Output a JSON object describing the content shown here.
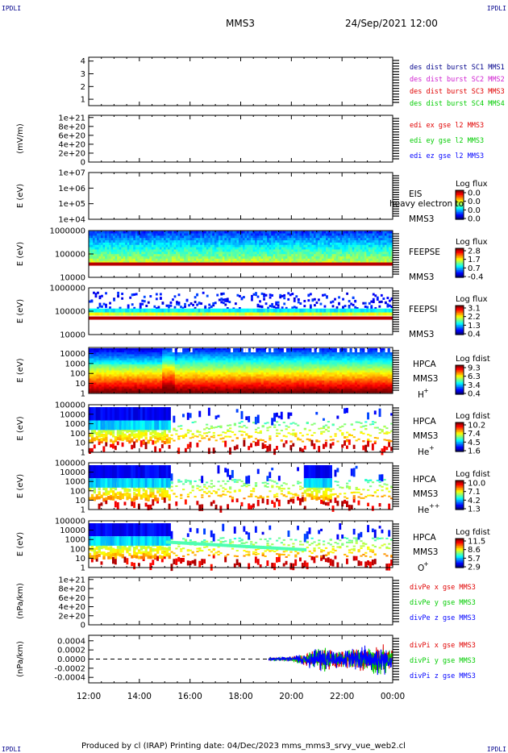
{
  "header": {
    "corner_left": "IPDLI",
    "corner_right": "IPDLI",
    "spacecraft": "MMS3",
    "datetime": "24/Sep/2021 12:00"
  },
  "footer": {
    "text": "Produced by cl (IRAP)    Printing date: 04/Dec/2023    mms_mms3_srvy_vue_web2.cl",
    "corner_left": "IPDLI",
    "corner_right": "IPDLI"
  },
  "colors": {
    "dark_blue": "#00008b",
    "magenta": "#d020d0",
    "red": "#e00000",
    "green": "#00cc00",
    "blue": "#0000ff"
  },
  "chart_data": [
    {
      "type": "line",
      "panel": "burst",
      "yticks": [
        "1",
        "2",
        "3",
        "4"
      ],
      "ylim": [
        0.5,
        4.3
      ],
      "legend": [
        {
          "label": "des dist burst SC1 MMS1",
          "color": "#00008b"
        },
        {
          "label": "des dist burst SC2 MMS2",
          "color": "#d020d0"
        },
        {
          "label": "des dist burst SC3 MMS3",
          "color": "#e00000"
        },
        {
          "label": "des dist burst SC4 MMS4",
          "color": "#00cc00"
        }
      ],
      "series": []
    },
    {
      "type": "line",
      "panel": "edi",
      "ylabel": "(mV/m)",
      "yticks": [
        "0",
        "2e+20",
        "4e+20",
        "6e+20",
        "8e+20",
        "1e+21"
      ],
      "ylim": [
        0,
        1.05e+21
      ],
      "zero_line": true,
      "legend": [
        {
          "label": "edi ex gse l2 MMS3",
          "color": "#e00000"
        },
        {
          "label": "edi ey gse l2 MMS3",
          "color": "#00cc00"
        },
        {
          "label": "edi ez gse l2 MMS3",
          "color": "#0000ff"
        }
      ],
      "series": []
    },
    {
      "type": "heatmap",
      "panel": "eis",
      "ylabel": "E (eV)",
      "yticks": [
        "1e+04",
        "1e+05",
        "1e+06",
        "1e+07"
      ],
      "ylim": [
        10000,
        10000000
      ],
      "scale": "log",
      "instrument": [
        "EIS",
        "MMS3"
      ],
      "overlay_text": "heavy electron to",
      "colorbar": {
        "title": "Log flux",
        "ticks": [
          "0.0",
          "0.0",
          "0.0",
          "0.0"
        ]
      }
    },
    {
      "type": "heatmap",
      "panel": "feepse",
      "ylabel": "E (eV)",
      "yticks": [
        "10000",
        "100000",
        "1000000"
      ],
      "ylim": [
        10000,
        1000000
      ],
      "scale": "log",
      "instrument": [
        "FEEPSE",
        "MMS3"
      ],
      "colorbar": {
        "title": "Log flux",
        "ticks": [
          "2.8",
          "1.7",
          "0.7",
          "-0.4"
        ]
      }
    },
    {
      "type": "heatmap",
      "panel": "feepsi",
      "ylabel": "E (eV)",
      "yticks": [
        "10000",
        "100000",
        "1000000"
      ],
      "ylim": [
        10000,
        1000000
      ],
      "scale": "log",
      "instrument": [
        "FEEPSI",
        "MMS3"
      ],
      "colorbar": {
        "title": "Log flux",
        "ticks": [
          "3.1",
          "2.2",
          "1.3",
          "0.4"
        ]
      }
    },
    {
      "type": "heatmap",
      "panel": "hpca_h",
      "ylabel": "E (eV)",
      "yticks": [
        "1",
        "10",
        "100",
        "1000",
        "10000"
      ],
      "ylim": [
        1,
        40000
      ],
      "scale": "log",
      "instrument": [
        "HPCA",
        "MMS3"
      ],
      "species": "H",
      "charge": "+",
      "colorbar": {
        "title": "Log fdist",
        "ticks": [
          "9.3",
          "6.3",
          "3.4",
          "0.4"
        ]
      }
    },
    {
      "type": "heatmap",
      "panel": "hpca_he1",
      "ylabel": "E (eV)",
      "yticks": [
        "1",
        "10",
        "100",
        "1000",
        "10000",
        "100000"
      ],
      "ylim": [
        1,
        100000
      ],
      "scale": "log",
      "instrument": [
        "HPCA",
        "MMS3"
      ],
      "species": "He",
      "charge": "+",
      "colorbar": {
        "title": "Log fdist",
        "ticks": [
          "10.2",
          "7.4",
          "4.5",
          "1.6"
        ]
      }
    },
    {
      "type": "heatmap",
      "panel": "hpca_he2",
      "ylabel": "E (eV)",
      "yticks": [
        "1",
        "10",
        "100",
        "1000",
        "10000",
        "100000"
      ],
      "ylim": [
        1,
        100000
      ],
      "scale": "log",
      "instrument": [
        "HPCA",
        "MMS3"
      ],
      "species": "He",
      "charge": "++",
      "colorbar": {
        "title": "Log fdist",
        "ticks": [
          "10.0",
          "7.1",
          "4.2",
          "1.3"
        ]
      }
    },
    {
      "type": "heatmap",
      "panel": "hpca_o",
      "ylabel": "E (eV)",
      "yticks": [
        "1",
        "10",
        "100",
        "1000",
        "10000",
        "100000"
      ],
      "ylim": [
        1,
        100000
      ],
      "scale": "log",
      "instrument": [
        "HPCA",
        "MMS3"
      ],
      "species": "O",
      "charge": "+",
      "colorbar": {
        "title": "Log fdist",
        "ticks": [
          "11.5",
          "8.6",
          "5.7",
          "2.9"
        ]
      }
    },
    {
      "type": "line",
      "panel": "divpe",
      "ylabel": "(nPa/km)",
      "yticks": [
        "0",
        "2e+20",
        "4e+20",
        "6e+20",
        "8e+20",
        "1e+21"
      ],
      "ylim": [
        0,
        1.05e+21
      ],
      "zero_line": true,
      "legend": [
        {
          "label": "divPe x gse MMS3",
          "color": "#e00000"
        },
        {
          "label": "divPe y gse MMS3",
          "color": "#00cc00"
        },
        {
          "label": "divPe z gse MMS3",
          "color": "#0000ff"
        }
      ],
      "series": []
    },
    {
      "type": "line",
      "panel": "divpi",
      "ylabel": "(nPa/km)",
      "yticks": [
        "-0.0004",
        "-0.0002",
        "0.0000",
        "0.0002",
        "0.0004"
      ],
      "ylim": [
        -0.00052,
        0.00052
      ],
      "zero_line": true,
      "legend": [
        {
          "label": "divPi x gse MMS3",
          "color": "#e00000"
        },
        {
          "label": "divPi y gse MMS3",
          "color": "#00cc00"
        },
        {
          "label": "divPi z gse MMS3",
          "color": "#0000ff"
        }
      ],
      "series": [
        {
          "name": "divPi x gse MMS3",
          "color": "#e00000",
          "x_start_hours": 19.1,
          "x_end_hours": 24.0,
          "envelope": [
            [
              19.1,
              3e-05
            ],
            [
              20.0,
              5e-05
            ],
            [
              21.2,
              0.0003
            ],
            [
              22.0,
              0.0002
            ],
            [
              22.8,
              0.0003
            ],
            [
              23.6,
              0.00035
            ],
            [
              24.0,
              0.0002
            ]
          ]
        },
        {
          "name": "divPi y gse MMS3",
          "color": "#00cc00",
          "x_start_hours": 19.1,
          "x_end_hours": 24.0,
          "envelope": [
            [
              19.1,
              3e-05
            ],
            [
              20.0,
              5e-05
            ],
            [
              21.2,
              0.0003
            ],
            [
              22.0,
              0.0002
            ],
            [
              22.8,
              0.0003
            ],
            [
              23.6,
              0.0004
            ],
            [
              24.0,
              0.0002
            ]
          ]
        },
        {
          "name": "divPi z gse MMS3",
          "color": "#0000ff",
          "x_start_hours": 19.1,
          "x_end_hours": 24.0,
          "envelope": [
            [
              19.1,
              4e-05
            ],
            [
              20.0,
              6e-05
            ],
            [
              21.2,
              0.00035
            ],
            [
              22.0,
              0.0002
            ],
            [
              22.8,
              0.00035
            ],
            [
              23.6,
              0.0004
            ],
            [
              24.0,
              0.0002
            ]
          ]
        }
      ]
    }
  ],
  "time_axis": {
    "ticks": [
      "12:00",
      "14:00",
      "16:00",
      "18:00",
      "20:00",
      "22:00",
      "00:00"
    ],
    "start_hours": 12,
    "end_hours": 24
  }
}
